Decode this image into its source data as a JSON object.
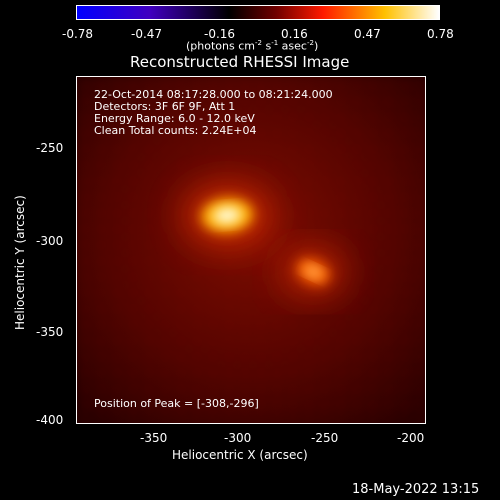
{
  "colorbar": {
    "tick_labels": [
      "-0.78",
      "-0.47",
      "-0.16",
      "0.16",
      "0.47",
      "0.78"
    ],
    "units_prefix": "(photons cm",
    "units_exp1": "-2",
    "units_mid": " s",
    "units_exp2": "-1",
    "units_mid2": " asec",
    "units_exp3": "-2",
    "units_suffix": ")"
  },
  "image": {
    "title": "Reconstructed RHESSI Image",
    "info_lines": [
      "22-Oct-2014 08:17:28.000 to 08:21:24.000",
      "Detectors: 3F 6F 9F, Att 1",
      "Energy Range: 6.0 - 12.0 keV",
      "Clean    Total counts: 2.24E+04"
    ],
    "peak_text": "Position of Peak = [-308,-296]",
    "x_axis": {
      "label": "Heliocentric X (arcsec)",
      "tick_labels": [
        "-350",
        "-300",
        "-250",
        "-200"
      ]
    },
    "y_axis": {
      "label": "Heliocentric Y (arcsec)",
      "tick_labels": [
        "-250",
        "-300",
        "-350",
        "-400"
      ]
    },
    "sources": [
      {
        "x": -308,
        "y": -296,
        "relative_intensity": 1.0
      },
      {
        "x": -261,
        "y": -327,
        "relative_intensity": 0.6
      }
    ],
    "colormap": [
      "#0000ff",
      "#30007a",
      "#000000",
      "#ff0000",
      "#ffd000",
      "#ffffff"
    ]
  },
  "footer": {
    "date": "18-May-2022 13:15"
  }
}
